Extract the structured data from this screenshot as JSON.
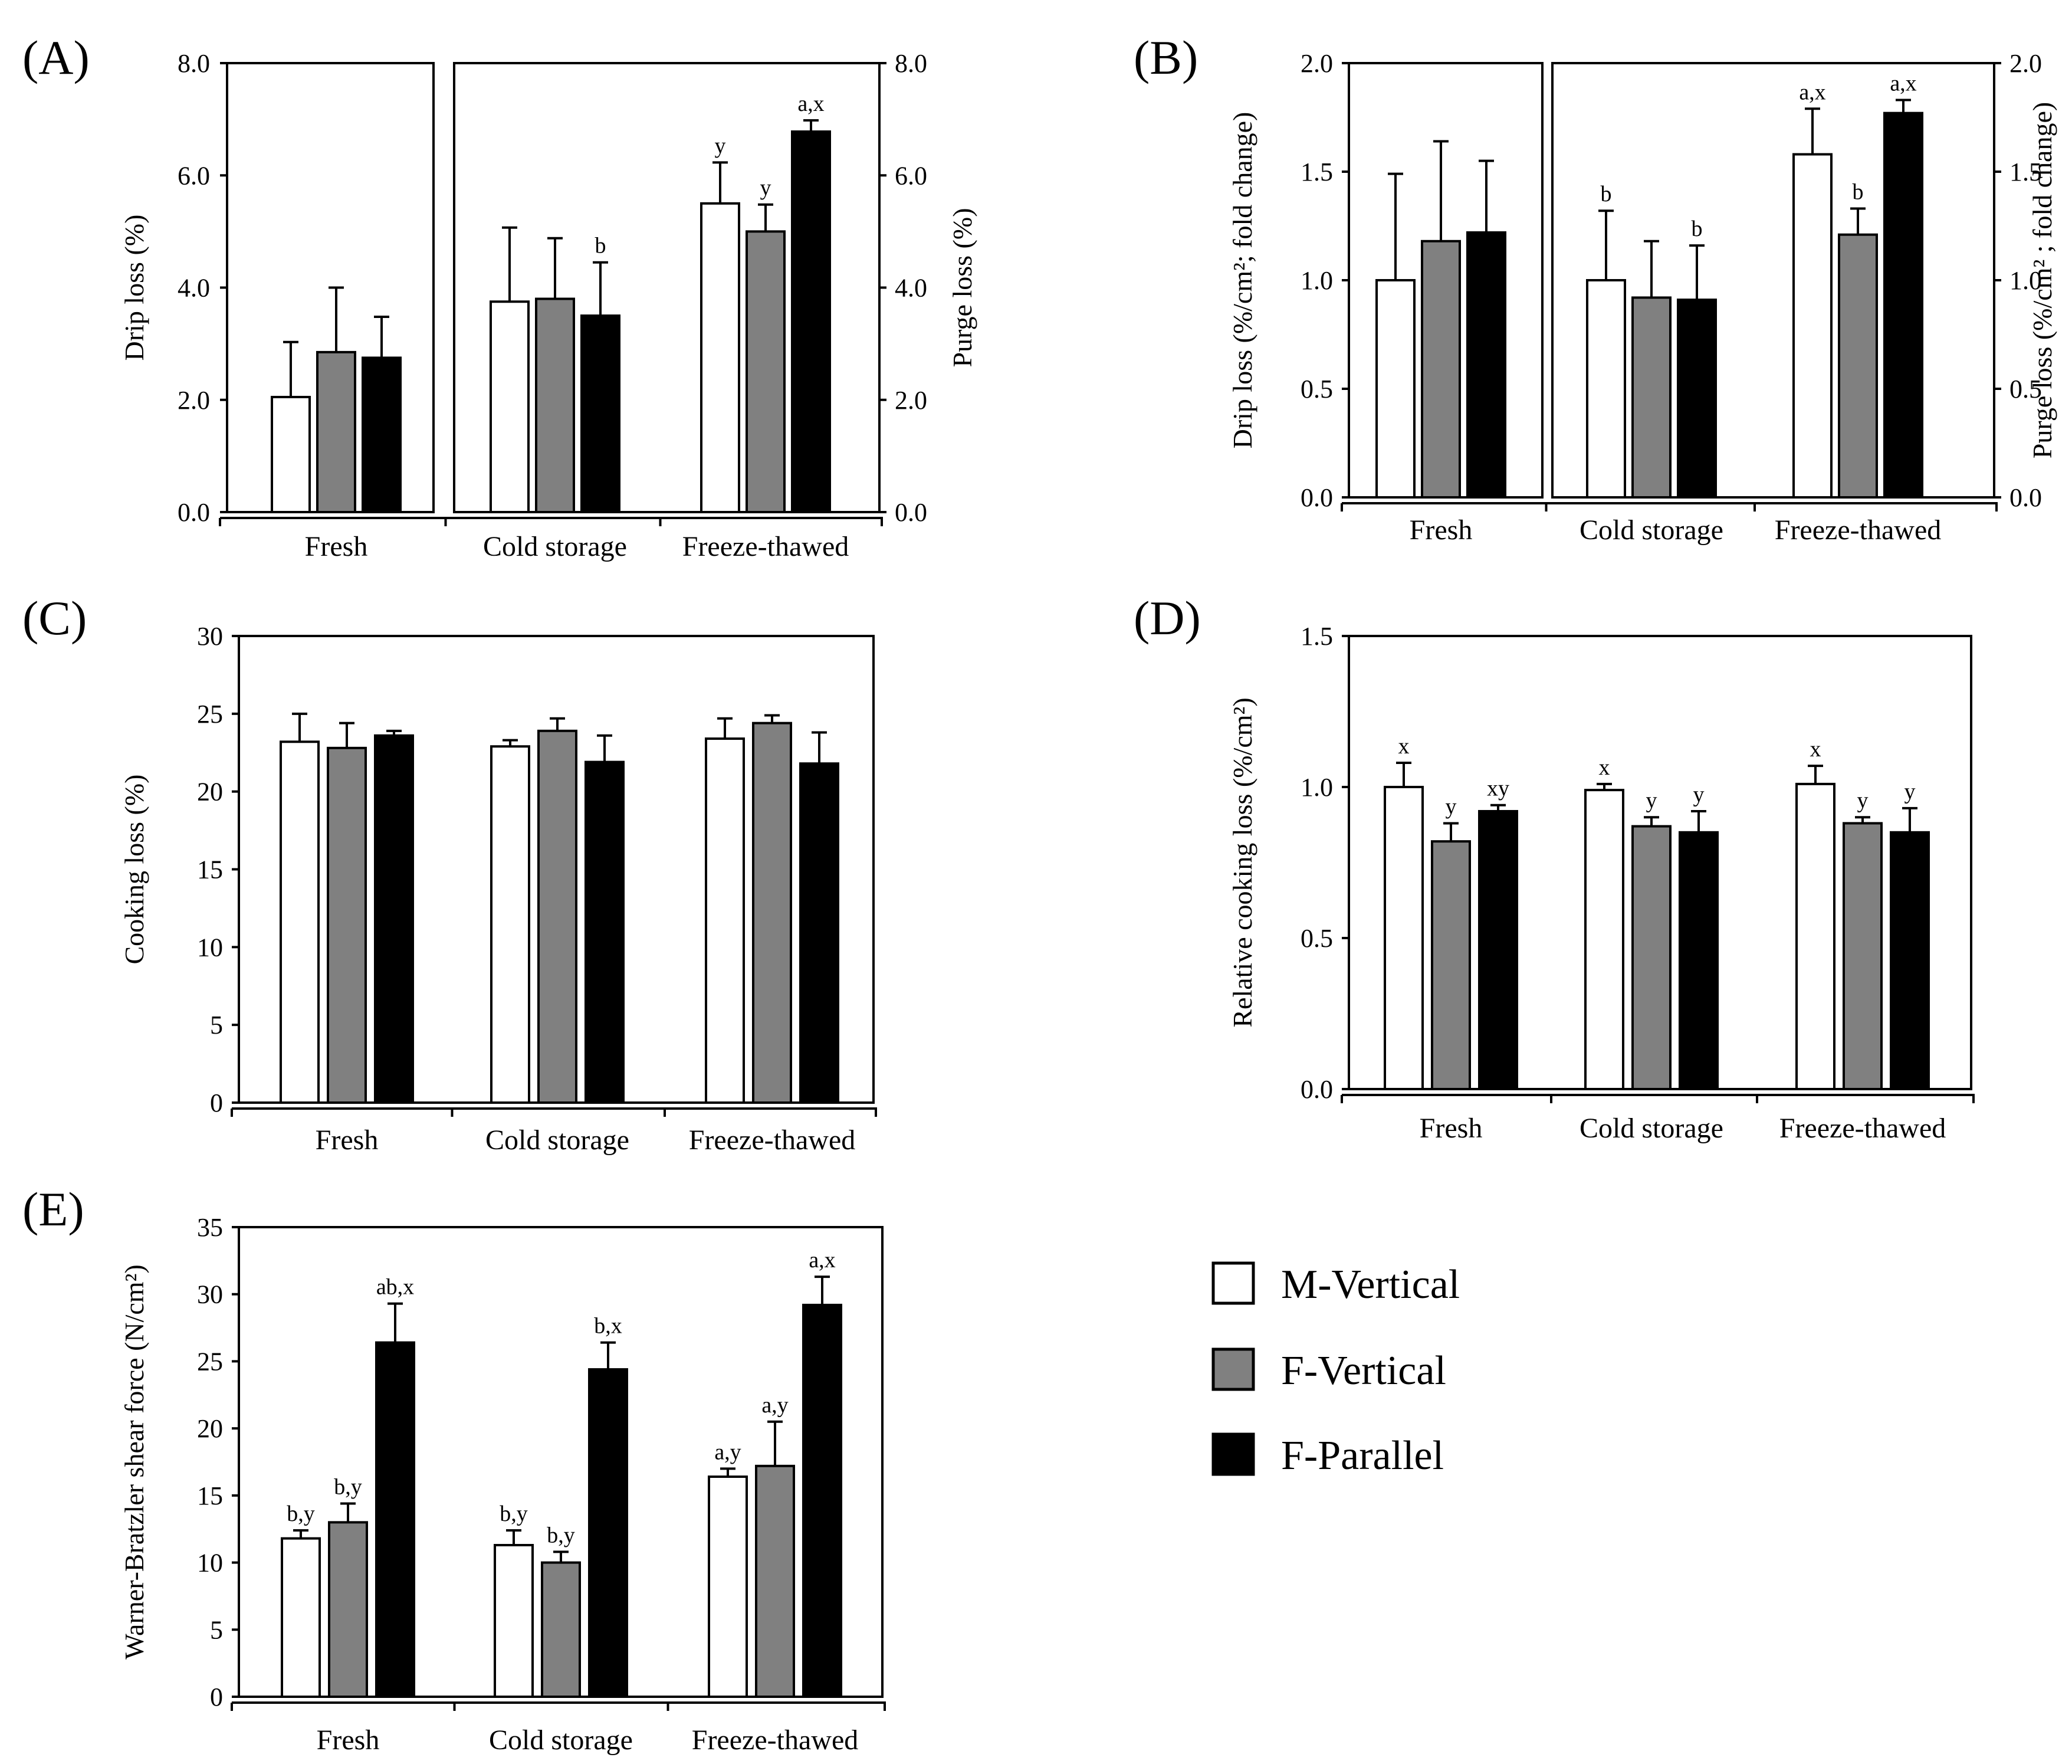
{
  "colors": {
    "M-Vertical": "#ffffff",
    "F-Vertical": "#808080",
    "F-Parallel": "#000000"
  },
  "legend": {
    "items": [
      {
        "label": "M-Vertical",
        "color": "#ffffff"
      },
      {
        "label": "F-Vertical",
        "color": "#808080"
      },
      {
        "label": "F-Parallel",
        "color": "#000000"
      }
    ]
  },
  "chart_data": [
    {
      "panel": "(A)",
      "type": "bar",
      "split_after_first": true,
      "categories": [
        "Fresh",
        "Cold storage",
        "Freeze-thawed"
      ],
      "ylabel": "Drip loss (%)",
      "ylabel_right": "Purge loss (%)",
      "ylim": [
        0,
        8
      ],
      "yticks": [
        "0.0",
        "2.0",
        "4.0",
        "6.0",
        "8.0"
      ],
      "yticks_right": [
        "0.0",
        "2.0",
        "4.0",
        "6.0",
        "8.0"
      ],
      "series": [
        {
          "name": "M-Vertical",
          "values": [
            2.05,
            3.75,
            5.5
          ],
          "errors": [
            0.98,
            1.32,
            0.73
          ],
          "labels": [
            "",
            "",
            "y"
          ]
        },
        {
          "name": "F-Vertical",
          "values": [
            2.85,
            3.8,
            5.0
          ],
          "errors": [
            1.15,
            1.08,
            0.48
          ],
          "labels": [
            "",
            "",
            "y"
          ]
        },
        {
          "name": "F-Parallel",
          "values": [
            2.75,
            3.5,
            6.78
          ],
          "errors": [
            0.73,
            0.95,
            0.2
          ],
          "labels": [
            "",
            "b",
            "a,x"
          ]
        }
      ]
    },
    {
      "panel": "(B)",
      "type": "bar",
      "split_after_first": true,
      "categories": [
        "Fresh",
        "Cold storage",
        "Freeze-thawed"
      ],
      "ylabel": "Drip loss (%/cm²; fold change)",
      "ylabel_right": "Purge loss (%/cm² ; fold change)",
      "ylim": [
        0,
        2
      ],
      "yticks": [
        "0.0",
        "0.5",
        "1.0",
        "1.5",
        "2.0"
      ],
      "yticks_right": [
        "0.0",
        "0.5",
        "1.0",
        "1.5",
        "2.0"
      ],
      "series": [
        {
          "name": "M-Vertical",
          "values": [
            1.0,
            1.0,
            1.58
          ],
          "errors": [
            0.49,
            0.32,
            0.21
          ],
          "labels": [
            "",
            "b",
            "a,x"
          ]
        },
        {
          "name": "F-Vertical",
          "values": [
            1.18,
            0.92,
            1.21
          ],
          "errors": [
            0.46,
            0.26,
            0.12
          ],
          "labels": [
            "",
            "",
            "b"
          ]
        },
        {
          "name": "F-Parallel",
          "values": [
            1.22,
            0.91,
            1.77
          ],
          "errors": [
            0.33,
            0.25,
            0.06
          ],
          "labels": [
            "",
            "b",
            "a,x"
          ]
        }
      ]
    },
    {
      "panel": "(C)",
      "type": "bar",
      "split_after_first": false,
      "categories": [
        "Fresh",
        "Cold storage",
        "Freeze-thawed"
      ],
      "ylabel": "Cooking loss (%)",
      "ylim": [
        0,
        30
      ],
      "yticks": [
        "0",
        "5",
        "10",
        "15",
        "20",
        "25",
        "30"
      ],
      "series": [
        {
          "name": "M-Vertical",
          "values": [
            23.2,
            22.9,
            23.4
          ],
          "errors": [
            1.8,
            0.4,
            1.3
          ],
          "labels": [
            "",
            "",
            ""
          ]
        },
        {
          "name": "F-Vertical",
          "values": [
            22.8,
            23.9,
            24.4
          ],
          "errors": [
            1.6,
            0.8,
            0.5
          ],
          "labels": [
            "",
            "",
            ""
          ]
        },
        {
          "name": "F-Parallel",
          "values": [
            23.6,
            21.9,
            21.8
          ],
          "errors": [
            0.3,
            1.7,
            2.0
          ],
          "labels": [
            "",
            "",
            ""
          ]
        }
      ]
    },
    {
      "panel": "(D)",
      "type": "bar",
      "split_after_first": false,
      "categories": [
        "Fresh",
        "Cold storage",
        "Freeze-thawed"
      ],
      "ylabel": "Relative cooking loss (%/cm²)",
      "ylim": [
        0,
        1.5
      ],
      "yticks": [
        "0.0",
        "0.5",
        "1.0",
        "1.5"
      ],
      "series": [
        {
          "name": "M-Vertical",
          "values": [
            1.0,
            0.99,
            1.01
          ],
          "errors": [
            0.08,
            0.02,
            0.06
          ],
          "labels": [
            "x",
            "x",
            "x"
          ]
        },
        {
          "name": "F-Vertical",
          "values": [
            0.82,
            0.87,
            0.88
          ],
          "errors": [
            0.06,
            0.03,
            0.02
          ],
          "labels": [
            "y",
            "y",
            "y"
          ]
        },
        {
          "name": "F-Parallel",
          "values": [
            0.92,
            0.85,
            0.85
          ],
          "errors": [
            0.02,
            0.07,
            0.08
          ],
          "labels": [
            "xy",
            "y",
            "y"
          ]
        }
      ]
    },
    {
      "panel": "(E)",
      "type": "bar",
      "split_after_first": false,
      "categories": [
        "Fresh",
        "Cold storage",
        "Freeze-thawed"
      ],
      "ylabel": "Warner-Bratzler shear force (N/cm²)",
      "ylim": [
        0,
        35
      ],
      "yticks": [
        "0",
        "5",
        "10",
        "15",
        "20",
        "25",
        "30",
        "35"
      ],
      "series": [
        {
          "name": "M-Vertical",
          "values": [
            11.8,
            11.3,
            16.4
          ],
          "errors": [
            0.6,
            1.1,
            0.6
          ],
          "labels": [
            "b,y",
            "b,y",
            "a,y"
          ]
        },
        {
          "name": "F-Vertical",
          "values": [
            13.0,
            10.0,
            17.2
          ],
          "errors": [
            1.4,
            0.8,
            3.3
          ],
          "labels": [
            "b,y",
            "b,y",
            "a,y"
          ]
        },
        {
          "name": "F-Parallel",
          "values": [
            26.4,
            24.4,
            29.2
          ],
          "errors": [
            2.9,
            2.0,
            2.1
          ],
          "labels": [
            "ab,x",
            "b,x",
            "a,x"
          ]
        }
      ]
    }
  ]
}
